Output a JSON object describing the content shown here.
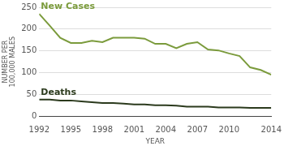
{
  "chart_data": {
    "type": "line",
    "x_label": "YEAR",
    "y_label": [
      "NUMBER PER",
      "100,000 MALES"
    ],
    "x": [
      1992,
      1993,
      1994,
      1995,
      1996,
      1997,
      1998,
      1999,
      2000,
      2001,
      2002,
      2003,
      2004,
      2005,
      2006,
      2007,
      2008,
      2009,
      2010,
      2011,
      2012,
      2013,
      2014
    ],
    "series": [
      {
        "name": "New Cases",
        "color": "#7b9b3c",
        "values": [
          235,
          208,
          180,
          168,
          168,
          173,
          170,
          180,
          180,
          180,
          178,
          166,
          166,
          156,
          166,
          170,
          153,
          151,
          144,
          138,
          112,
          106,
          95
        ]
      },
      {
        "name": "Deaths",
        "color": "#2b3a1d",
        "values": [
          38,
          38,
          36,
          36,
          34,
          32,
          30,
          30,
          29,
          27,
          27,
          25,
          25,
          24,
          22,
          22,
          22,
          20,
          20,
          20,
          19,
          19,
          19
        ]
      }
    ],
    "xlim": [
      1992,
      2014
    ],
    "xticks": [
      1992,
      1995,
      1998,
      2001,
      2004,
      2007,
      2010,
      2014
    ],
    "ylim": [
      0,
      250
    ],
    "yticks": [
      0,
      50,
      100,
      150,
      200,
      250
    ],
    "grid": true
  }
}
